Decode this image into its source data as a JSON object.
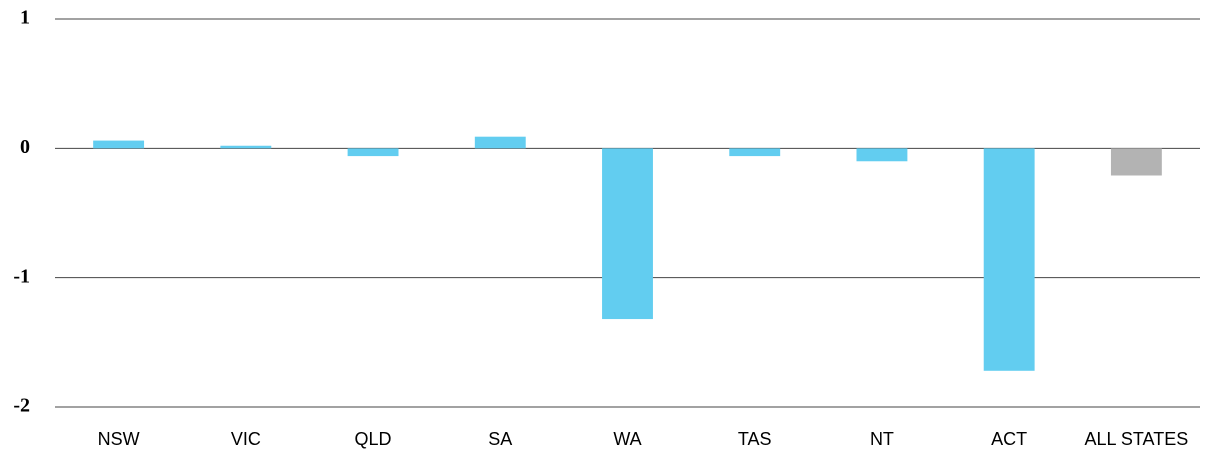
{
  "chart_data": {
    "type": "bar",
    "categories": [
      "NSW",
      "VIC",
      "QLD",
      "SA",
      "WA",
      "TAS",
      "NT",
      "ACT",
      "ALL STATES"
    ],
    "values": [
      0.06,
      0.02,
      -0.06,
      0.09,
      -1.32,
      -0.06,
      -0.1,
      -1.72,
      -0.21
    ],
    "colors": [
      "#62cdf0",
      "#62cdf0",
      "#62cdf0",
      "#62cdf0",
      "#62cdf0",
      "#62cdf0",
      "#62cdf0",
      "#62cdf0",
      "#b3b3b3"
    ],
    "ylim": [
      -2,
      1
    ],
    "yticks": [
      1,
      0,
      -1,
      -2
    ],
    "grid": true
  }
}
